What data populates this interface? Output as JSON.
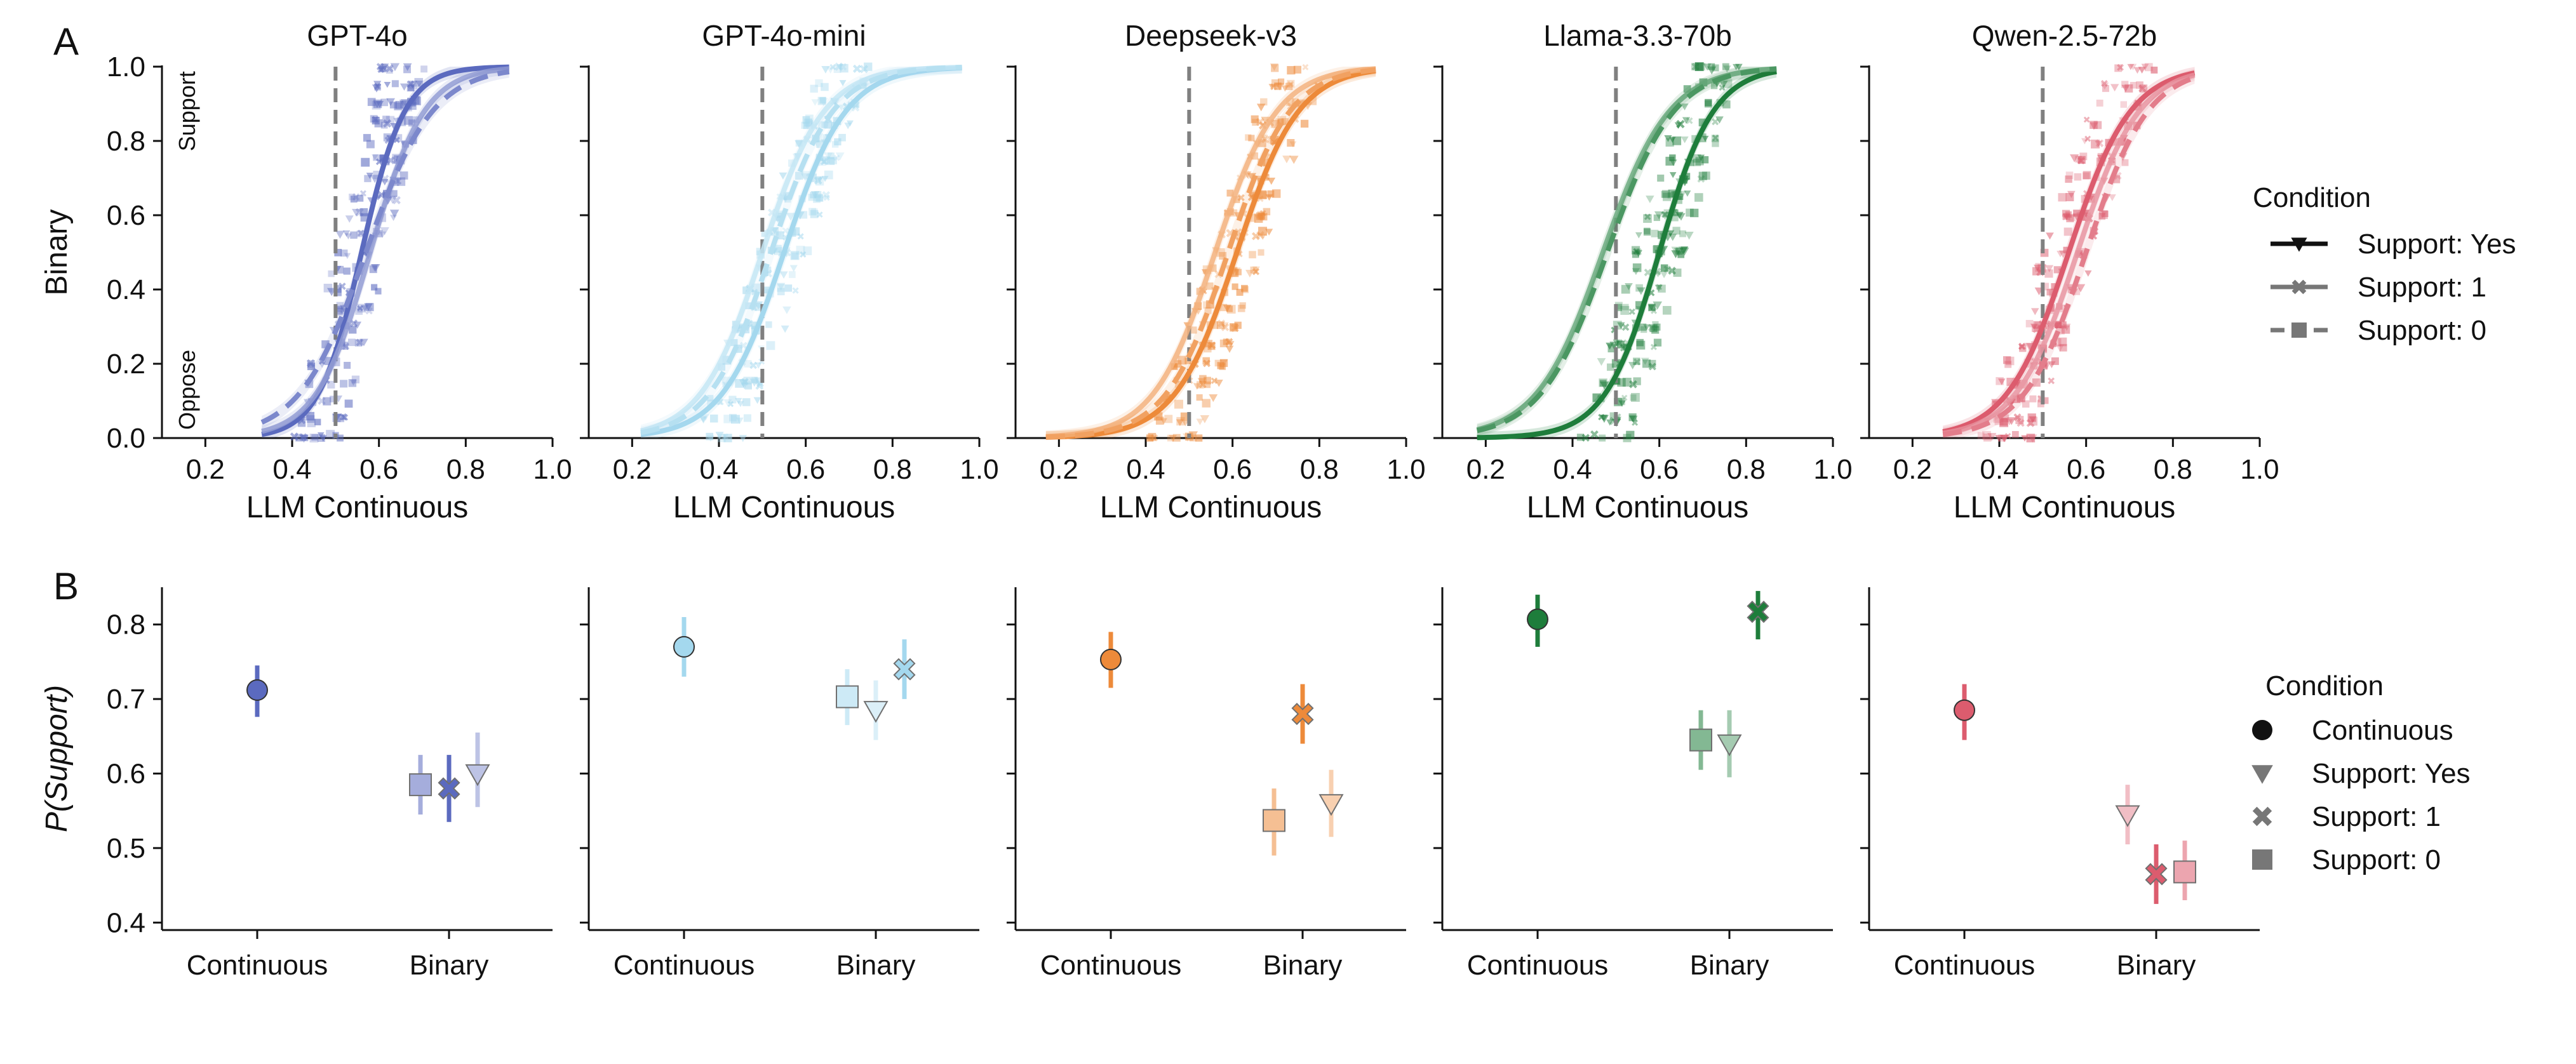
{
  "panel_a_letter": "A",
  "panel_b_letter": "B",
  "legend_a": {
    "title": "Condition",
    "items": [
      {
        "label": "Support: Yes",
        "style": "solid",
        "marker": "triangle"
      },
      {
        "label": "Support: 1",
        "style": "solid-light",
        "marker": "x"
      },
      {
        "label": "Support: 0",
        "style": "dashed",
        "marker": "square"
      }
    ]
  },
  "legend_b": {
    "title": "Condition",
    "items": [
      {
        "label": "Continuous",
        "marker": "circle"
      },
      {
        "label": "Support: Yes",
        "marker": "triangle"
      },
      {
        "label": "Support: 1",
        "marker": "x"
      },
      {
        "label": "Support: 0",
        "marker": "square"
      }
    ]
  },
  "panel_a_annotations": {
    "top": "Support",
    "bottom": "Oppose"
  },
  "chart_data": [
    {
      "type": "line",
      "panel": "A",
      "description": "Logistic fits of Binary response vs LLM Continuous score per model",
      "xlabel": "LLM Continuous",
      "ylabel": "Binary",
      "xlim": [
        0.1,
        1.0
      ],
      "ylim": [
        0.0,
        1.0
      ],
      "xticks": [
        "0.2",
        "0.4",
        "0.6",
        "0.8",
        "1.0"
      ],
      "yticks": [
        "0.0",
        "0.2",
        "0.4",
        "0.6",
        "0.8",
        "1.0"
      ],
      "threshold_line": 0.5,
      "models": [
        {
          "name": "GPT-4o",
          "color": "#5b6abf",
          "curves": [
            {
              "name": "Support: Yes",
              "midpoint": 0.56,
              "slope": 20,
              "xmin": 0.33,
              "xmax": 0.9
            },
            {
              "name": "Support: 1",
              "midpoint": 0.58,
              "slope": 16,
              "xmin": 0.33,
              "xmax": 0.9
            },
            {
              "name": "Support: 0",
              "midpoint": 0.57,
              "slope": 13,
              "xmin": 0.33,
              "xmax": 0.9
            }
          ]
        },
        {
          "name": "GPT-4o-mini",
          "color": "#a4d8ee",
          "curves": [
            {
              "name": "Support: Yes",
              "midpoint": 0.55,
              "slope": 14,
              "xmin": 0.22,
              "xmax": 0.96
            },
            {
              "name": "Support: 1",
              "midpoint": 0.5,
              "slope": 14,
              "xmin": 0.22,
              "xmax": 0.96
            },
            {
              "name": "Support: 0",
              "midpoint": 0.52,
              "slope": 14,
              "xmin": 0.22,
              "xmax": 0.96
            }
          ]
        },
        {
          "name": "Deepseek-v3",
          "color": "#ed8a3a",
          "curves": [
            {
              "name": "Support: Yes",
              "midpoint": 0.61,
              "slope": 14,
              "xmin": 0.17,
              "xmax": 0.93
            },
            {
              "name": "Support: 1",
              "midpoint": 0.56,
              "slope": 14,
              "xmin": 0.17,
              "xmax": 0.93
            },
            {
              "name": "Support: 0",
              "midpoint": 0.59,
              "slope": 14,
              "xmin": 0.17,
              "xmax": 0.93
            }
          ]
        },
        {
          "name": "Llama-3.3-70b",
          "color": "#1e7d3b",
          "curves": [
            {
              "name": "Support: Yes",
              "midpoint": 0.6,
              "slope": 16,
              "xmin": 0.18,
              "xmax": 0.87
            },
            {
              "name": "Support: 1",
              "midpoint": 0.47,
              "slope": 13,
              "xmin": 0.18,
              "xmax": 0.87
            },
            {
              "name": "Support: 0",
              "midpoint": 0.48,
              "slope": 13,
              "xmin": 0.18,
              "xmax": 0.87
            }
          ]
        },
        {
          "name": "Qwen-2.5-72b",
          "color": "#dc5c6e",
          "curves": [
            {
              "name": "Support: Yes",
              "midpoint": 0.56,
              "slope": 14,
              "xmin": 0.27,
              "xmax": 0.85
            },
            {
              "name": "Support: 1",
              "midpoint": 0.58,
              "slope": 14,
              "xmin": 0.27,
              "xmax": 0.85
            },
            {
              "name": "Support: 0",
              "midpoint": 0.6,
              "slope": 14,
              "xmin": 0.27,
              "xmax": 0.85
            }
          ]
        }
      ]
    },
    {
      "type": "scatter",
      "panel": "B",
      "description": "P(Support) with error bars per condition and model",
      "ylabel": "P(Support)",
      "ylim": [
        0.39,
        0.85
      ],
      "yticks": [
        "0.4",
        "0.5",
        "0.6",
        "0.7",
        "0.8"
      ],
      "categories": [
        "Continuous",
        "Binary"
      ],
      "models": [
        {
          "name": "GPT-4o",
          "color": "#5b6abf",
          "points": [
            {
              "condition": "Continuous",
              "value": 0.712,
              "lo": 0.676,
              "hi": 0.745
            },
            {
              "condition": "Support: 0",
              "value": 0.585,
              "lo": 0.545,
              "hi": 0.625
            },
            {
              "condition": "Support: 1",
              "value": 0.58,
              "lo": 0.535,
              "hi": 0.625
            },
            {
              "condition": "Support: Yes",
              "value": 0.6,
              "lo": 0.555,
              "hi": 0.655
            }
          ]
        },
        {
          "name": "GPT-4o-mini",
          "color": "#a4d8ee",
          "points": [
            {
              "condition": "Continuous",
              "value": 0.77,
              "lo": 0.73,
              "hi": 0.81
            },
            {
              "condition": "Support: 0",
              "value": 0.703,
              "lo": 0.665,
              "hi": 0.74
            },
            {
              "condition": "Support: Yes",
              "value": 0.685,
              "lo": 0.645,
              "hi": 0.725
            },
            {
              "condition": "Support: 1",
              "value": 0.74,
              "lo": 0.7,
              "hi": 0.78
            }
          ]
        },
        {
          "name": "Deepseek-v3",
          "color": "#ed8a3a",
          "points": [
            {
              "condition": "Continuous",
              "value": 0.753,
              "lo": 0.715,
              "hi": 0.79
            },
            {
              "condition": "Support: 0",
              "value": 0.537,
              "lo": 0.49,
              "hi": 0.58
            },
            {
              "condition": "Support: 1",
              "value": 0.68,
              "lo": 0.64,
              "hi": 0.72
            },
            {
              "condition": "Support: Yes",
              "value": 0.56,
              "lo": 0.515,
              "hi": 0.605
            }
          ]
        },
        {
          "name": "Llama-3.3-70b",
          "color": "#1e7d3b",
          "points": [
            {
              "condition": "Continuous",
              "value": 0.807,
              "lo": 0.77,
              "hi": 0.84
            },
            {
              "condition": "Support: 0",
              "value": 0.645,
              "lo": 0.605,
              "hi": 0.685
            },
            {
              "condition": "Support: Yes",
              "value": 0.64,
              "lo": 0.595,
              "hi": 0.685
            },
            {
              "condition": "Support: 1",
              "value": 0.817,
              "lo": 0.78,
              "hi": 0.845
            }
          ]
        },
        {
          "name": "Qwen-2.5-72b",
          "color": "#dc5c6e",
          "points": [
            {
              "condition": "Continuous",
              "value": 0.685,
              "lo": 0.645,
              "hi": 0.72
            },
            {
              "condition": "Support: Yes",
              "value": 0.545,
              "lo": 0.505,
              "hi": 0.585
            },
            {
              "condition": "Support: 1",
              "value": 0.465,
              "lo": 0.425,
              "hi": 0.505
            },
            {
              "condition": "Support: 0",
              "value": 0.468,
              "lo": 0.43,
              "hi": 0.51
            }
          ]
        }
      ]
    }
  ]
}
